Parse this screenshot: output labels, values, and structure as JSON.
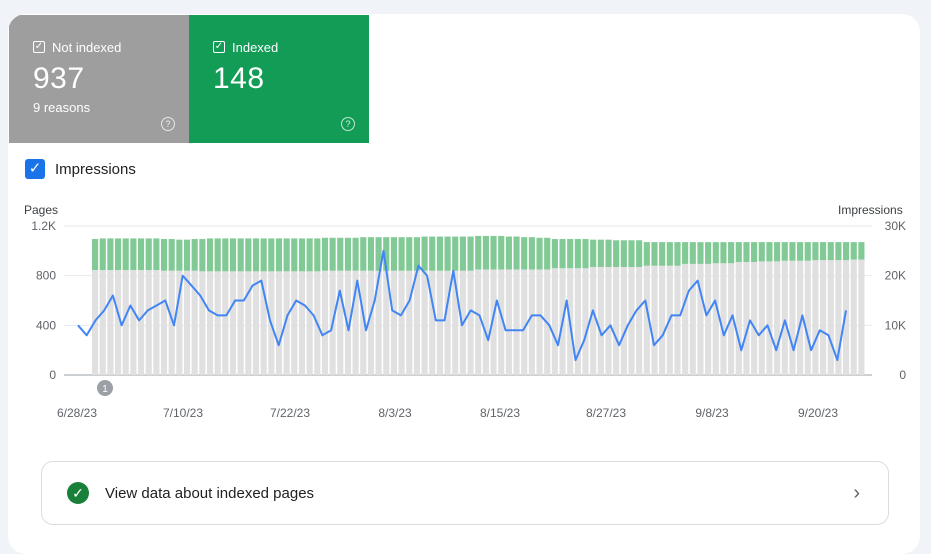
{
  "cards": {
    "not_indexed": {
      "label": "Not indexed",
      "count": "937",
      "sub": "9 reasons",
      "color": "#9e9e9e",
      "help_icon": "help-circle-icon"
    },
    "indexed": {
      "label": "Indexed",
      "count": "148",
      "color": "#129c56",
      "help_icon": "help-circle-icon"
    }
  },
  "impressions_toggle": {
    "label": "Impressions",
    "checked": true,
    "color": "#1a73e8"
  },
  "view_link": {
    "label": "View data about indexed pages",
    "icon": "check-circle-icon",
    "chevron": "chevron-right-icon"
  },
  "chart_data": {
    "type": "bar",
    "left_axis": {
      "title": "Pages",
      "ticks": [
        "0",
        "400",
        "800",
        "1.2K"
      ],
      "range": [
        0,
        1200
      ]
    },
    "right_axis": {
      "title": "Impressions",
      "ticks": [
        "0",
        "10K",
        "20K",
        "30K"
      ],
      "range": [
        0,
        30000
      ]
    },
    "x_tick_labels": [
      "6/28/23",
      "7/10/23",
      "7/22/23",
      "8/3/23",
      "8/15/23",
      "8/27/23",
      "9/8/23",
      "9/20/23"
    ],
    "annotation": "1",
    "series": [
      {
        "name": "Not indexed",
        "color": "#e0e0e0",
        "values": [
          845,
          845,
          845,
          845,
          845,
          845,
          845,
          845,
          845,
          840,
          840,
          840,
          840,
          840,
          835,
          835,
          835,
          835,
          835,
          835,
          835,
          835,
          835,
          835,
          835,
          835,
          835,
          835,
          835,
          835,
          840,
          840,
          840,
          840,
          840,
          840,
          840,
          840,
          840,
          840,
          840,
          840,
          840,
          840,
          840,
          840,
          840,
          840,
          840,
          840,
          850,
          850,
          850,
          850,
          850,
          850,
          850,
          850,
          850,
          850,
          860,
          860,
          860,
          860,
          860,
          870,
          870,
          870,
          870,
          870,
          870,
          870,
          880,
          880,
          880,
          880,
          880,
          895,
          895,
          895,
          895,
          900,
          900,
          900,
          910,
          910,
          910,
          915,
          915,
          915,
          920,
          920,
          920,
          920,
          925,
          925,
          925,
          925,
          925,
          930,
          930
        ]
      },
      {
        "name": "Indexed",
        "color": "#81c995",
        "values": [
          250,
          255,
          255,
          255,
          255,
          255,
          255,
          255,
          255,
          255,
          255,
          250,
          250,
          255,
          260,
          265,
          265,
          265,
          265,
          265,
          265,
          265,
          265,
          265,
          265,
          265,
          265,
          265,
          265,
          265,
          265,
          265,
          265,
          265,
          265,
          270,
          270,
          270,
          270,
          270,
          270,
          270,
          270,
          275,
          275,
          275,
          275,
          275,
          275,
          275,
          270,
          270,
          270,
          270,
          265,
          265,
          260,
          260,
          255,
          255,
          235,
          235,
          235,
          235,
          235,
          220,
          220,
          220,
          215,
          215,
          215,
          215,
          190,
          190,
          190,
          190,
          190,
          175,
          175,
          175,
          175,
          170,
          170,
          170,
          160,
          160,
          160,
          155,
          155,
          155,
          150,
          150,
          150,
          150,
          145,
          145,
          145,
          145,
          145,
          140,
          140
        ]
      },
      {
        "name": "Impressions",
        "color": "#4285f4",
        "values": [
          10000,
          8000,
          11000,
          13000,
          16000,
          10000,
          14000,
          11000,
          13000,
          14000,
          15000,
          10000,
          20000,
          18000,
          16000,
          13000,
          12000,
          12000,
          15000,
          15000,
          18000,
          19000,
          11000,
          6000,
          12000,
          15000,
          14000,
          12000,
          8000,
          9000,
          17000,
          9000,
          19000,
          9000,
          15000,
          25000,
          13000,
          12000,
          15000,
          22000,
          20000,
          11000,
          11000,
          21000,
          10000,
          13000,
          12000,
          7000,
          15000,
          9000,
          9000,
          9000,
          12000,
          12000,
          10000,
          6000,
          15000,
          3000,
          7000,
          13000,
          8000,
          10000,
          6000,
          10000,
          13000,
          15000,
          6000,
          8000,
          12000,
          12000,
          17000,
          19000,
          12000,
          15000,
          8000,
          12000,
          5000,
          11000,
          8000,
          10000,
          5000,
          11000,
          5000,
          12000,
          5000,
          9000,
          8000,
          3000,
          13000
        ]
      }
    ]
  }
}
